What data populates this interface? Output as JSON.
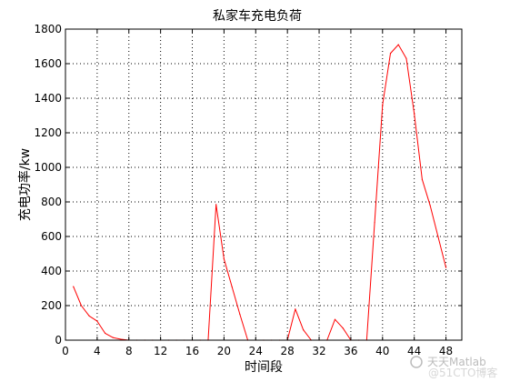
{
  "chart_data": {
    "type": "line",
    "title": "私家车充电负荷",
    "xlabel": "时间段",
    "ylabel": "充电功率/kw",
    "xlim": [
      0,
      50
    ],
    "ylim": [
      0,
      1800
    ],
    "xticks": [
      0,
      4,
      8,
      12,
      16,
      20,
      24,
      28,
      32,
      36,
      40,
      44,
      48
    ],
    "yticks": [
      0,
      200,
      400,
      600,
      800,
      1000,
      1200,
      1400,
      1600,
      1800
    ],
    "grid": true,
    "grid_style": "dotted",
    "series": [
      {
        "color": "#ff0000",
        "x": [
          1,
          2,
          3,
          4,
          5,
          6,
          7,
          8,
          9,
          10,
          11,
          12,
          13,
          14,
          15,
          16,
          17,
          18,
          19,
          20,
          21,
          22,
          23,
          24,
          25,
          26,
          27,
          28,
          29,
          30,
          31,
          32,
          33,
          34,
          35,
          36,
          37,
          38,
          39,
          40,
          41,
          42,
          43,
          44,
          45,
          46,
          47,
          48
        ],
        "y": [
          310,
          200,
          140,
          110,
          40,
          15,
          5,
          0,
          0,
          0,
          0,
          0,
          0,
          0,
          0,
          0,
          0,
          0,
          785,
          470,
          310,
          150,
          0,
          0,
          0,
          0,
          0,
          0,
          180,
          60,
          0,
          0,
          0,
          120,
          70,
          0,
          0,
          0,
          680,
          1360,
          1660,
          1710,
          1630,
          1310,
          930,
          780,
          600,
          420
        ]
      }
    ]
  },
  "watermark": {
    "text": "天天Matlab",
    "subtext": "@51CTO博客"
  }
}
